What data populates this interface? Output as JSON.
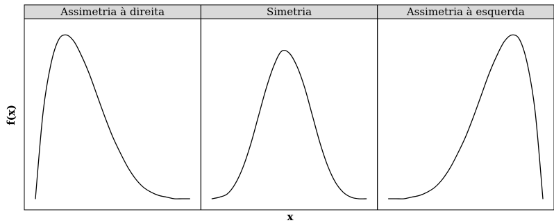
{
  "chart_data": {
    "type": "line",
    "xlabel": "x",
    "ylabel": "f(x)",
    "grid": false,
    "legend": "none",
    "line_color": "#000000",
    "strip_color": "#d9d9d9",
    "panels": [
      {
        "strip_label": "Assimetria à direita",
        "series": [
          {
            "x": [
              0.0,
              0.05,
              0.1,
              0.15,
              0.2,
              0.25,
              0.3,
              0.35,
              0.4,
              0.45,
              0.5,
              0.55,
              0.6,
              0.65,
              0.7,
              0.75,
              0.8,
              0.85,
              0.9,
              0.95,
              1.0
            ],
            "y": [
              0.0,
              0.53,
              0.82,
              0.97,
              1.0,
              0.96,
              0.87,
              0.76,
              0.63,
              0.5,
              0.38,
              0.28,
              0.19,
              0.12,
              0.07,
              0.04,
              0.02,
              0.01,
              0.0,
              0.0,
              0.0
            ]
          }
        ]
      },
      {
        "strip_label": "Simetria",
        "series": [
          {
            "x": [
              0.0,
              0.05,
              0.1,
              0.15,
              0.2,
              0.25,
              0.3,
              0.35,
              0.4,
              0.45,
              0.5,
              0.55,
              0.6,
              0.65,
              0.7,
              0.75,
              0.8,
              0.85,
              0.9,
              0.95,
              1.0
            ],
            "y": [
              0.0,
              0.01,
              0.03,
              0.09,
              0.19,
              0.33,
              0.5,
              0.67,
              0.81,
              0.9,
              0.89,
              0.81,
              0.68,
              0.51,
              0.34,
              0.2,
              0.1,
              0.04,
              0.01,
              0.0,
              0.0
            ]
          }
        ]
      },
      {
        "strip_label": "Assimetria à esquerda",
        "series": [
          {
            "x": [
              0.0,
              0.05,
              0.1,
              0.15,
              0.2,
              0.25,
              0.3,
              0.35,
              0.4,
              0.45,
              0.5,
              0.55,
              0.6,
              0.65,
              0.7,
              0.75,
              0.8,
              0.85,
              0.9,
              0.95,
              1.0
            ],
            "y": [
              0.0,
              0.0,
              0.0,
              0.01,
              0.02,
              0.04,
              0.07,
              0.12,
              0.19,
              0.28,
              0.38,
              0.5,
              0.63,
              0.76,
              0.87,
              0.96,
              1.0,
              0.97,
              0.82,
              0.53,
              0.0
            ]
          }
        ]
      }
    ],
    "xlim": [
      0,
      1
    ],
    "ylim": [
      0,
      1.04
    ]
  }
}
